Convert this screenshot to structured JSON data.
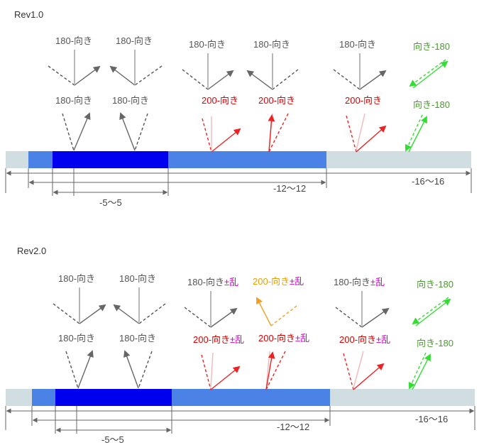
{
  "colors": {
    "gray": "#666666",
    "red": "#ee2222",
    "pink": "#f2b8b8",
    "green": "#33dd33",
    "orange": "#f0a020",
    "magenta": "#cc00cc",
    "bar_light": "#d0dee2",
    "bar_mid": "#4a82e6",
    "bar_dark": "#0000ee"
  },
  "panels": [
    {
      "title": "Rev1.0",
      "texts": {
        "a1": "180-向き",
        "a2": "180-向き",
        "a3": "180-向き",
        "a4": "180-向き",
        "a5": "180-向き",
        "b1": "180-向き",
        "b2": "180-向き",
        "c1": "200-向き",
        "c2": "200-向き",
        "c3": "200-向き",
        "g1": "向き-180",
        "g2": "向き-180"
      },
      "dims": {
        "inner": "-5〜5",
        "mid": "-12〜12",
        "outer": "-16〜16"
      }
    },
    {
      "title": "Rev2.0",
      "texts": {
        "a1": "180-向き",
        "a2": "180-向き",
        "a3": "180-向き",
        "a3s": "±乱",
        "o1": "200-向き",
        "o1s": "±乱",
        "a5": "180-向き",
        "a5s": "±乱",
        "b1": "180-向き",
        "b2": "180-向き",
        "c1": "200-向き",
        "c1s": "±乱",
        "c2": "200-向き",
        "c2s": "±乱",
        "c3": "200-向き",
        "c3s": "±乱",
        "g1": "向き-180",
        "g2": "向き-180"
      },
      "dims": {
        "inner": "-5〜5",
        "mid": "-12〜12",
        "outer": "-16〜16"
      }
    }
  ]
}
